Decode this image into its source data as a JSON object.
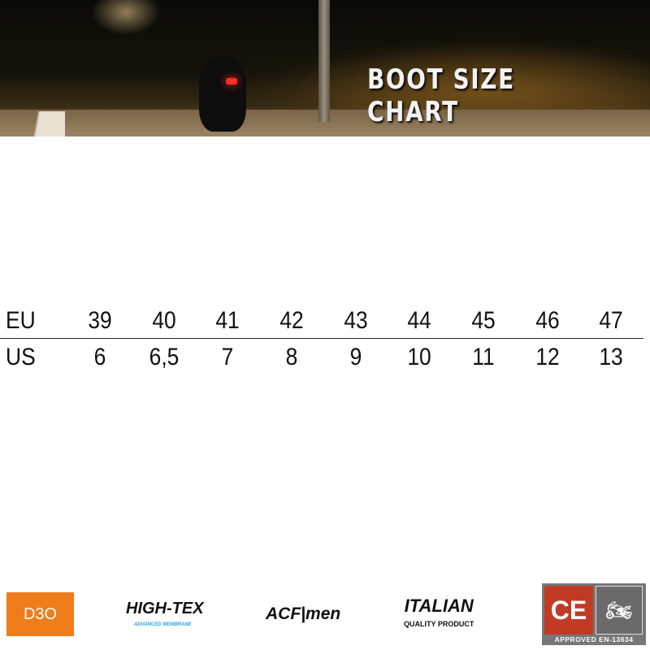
{
  "banner": {
    "title": "BOOT SIZE CHART"
  },
  "size_table": {
    "rows": [
      {
        "label": "EU",
        "values": [
          "39",
          "40",
          "41",
          "42",
          "43",
          "44",
          "45",
          "46",
          "47"
        ]
      },
      {
        "label": "US",
        "values": [
          "6",
          "6,5",
          "7",
          "8",
          "9",
          "10",
          "11",
          "12",
          "13"
        ]
      }
    ]
  },
  "logos": {
    "d3o": "D3O",
    "hightex": {
      "name": "HIGH-TEX",
      "tagline": "ADVANCED MEMBRANE"
    },
    "acf": "ACF|men",
    "italian": {
      "name": "ITALIAN",
      "tagline": "QUALITY PRODUCT"
    },
    "ce": {
      "mark": "CE",
      "icon": "motorcycle-icon",
      "text": "APPROVED EN-13634"
    }
  },
  "colors": {
    "d3o_orange": "#ef7d1a",
    "ce_red": "#c13a25",
    "hightex_blue": "#2aa0e0"
  }
}
